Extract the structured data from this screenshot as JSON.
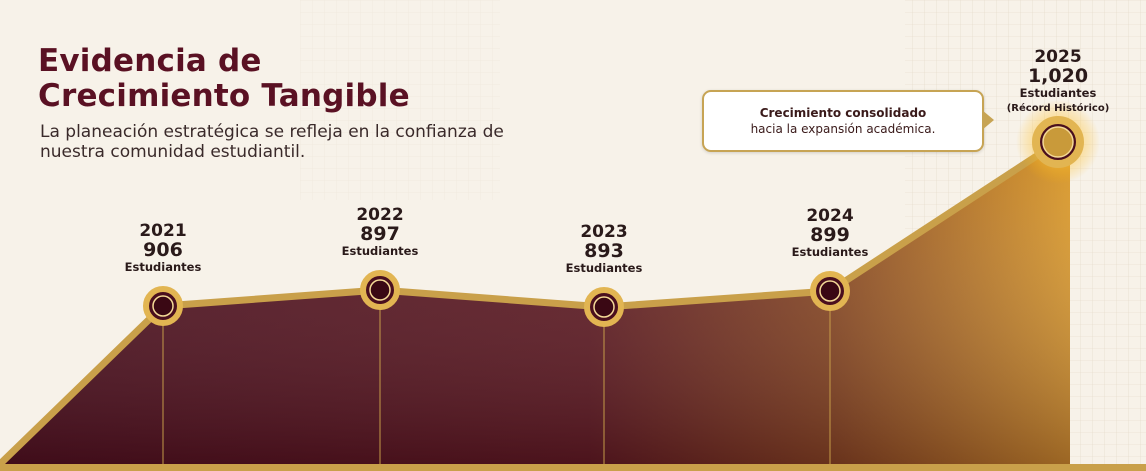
{
  "header": {
    "title_line1": "Evidencia de",
    "title_line2": "Crecimiento Tangible",
    "subtitle": "La planeación estratégica se refleja en la confianza de nuestra comunidad estudiantil."
  },
  "callout": {
    "line1": "Crecimiento consolidado",
    "line2": "hacia la expansión académica."
  },
  "colors": {
    "maroon": "#5a1123",
    "gold": "#d9a23a",
    "line_gold": "#c9a04a"
  },
  "chart_data": {
    "type": "area",
    "title": "Evidencia de Crecimiento Tangible",
    "x": [
      "2021",
      "2022",
      "2023",
      "2024",
      "2025"
    ],
    "values": [
      906,
      897,
      893,
      899,
      1020
    ],
    "value_labels": [
      "906",
      "897",
      "893",
      "899",
      "1,020"
    ],
    "unit_label": "Estudiantes",
    "extra_label_last": "(Récord Histórico)",
    "xlabel": "",
    "ylabel": ""
  }
}
